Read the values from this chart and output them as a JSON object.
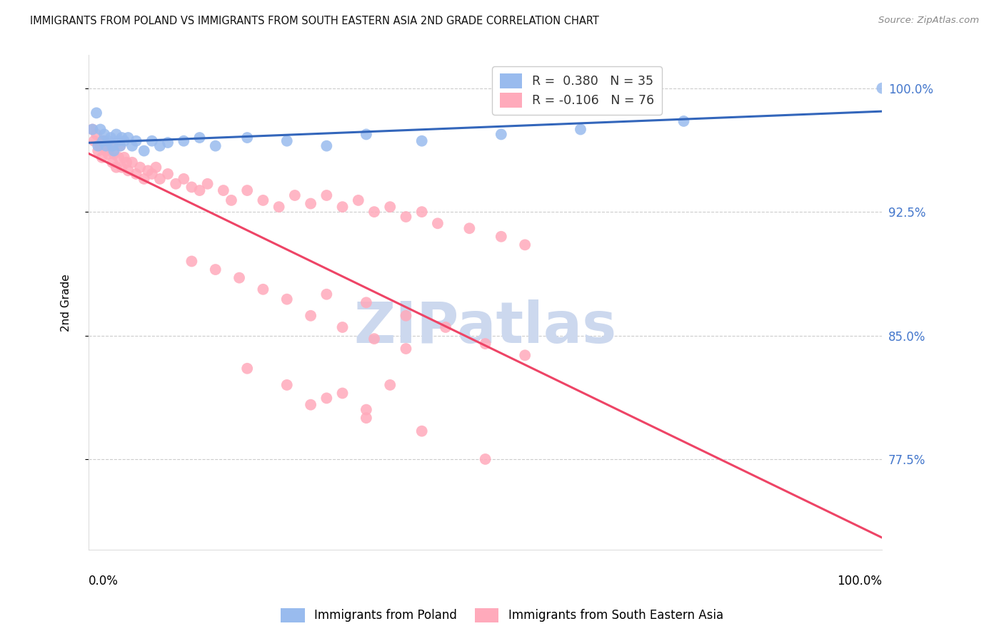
{
  "title": "IMMIGRANTS FROM POLAND VS IMMIGRANTS FROM SOUTH EASTERN ASIA 2ND GRADE CORRELATION CHART",
  "source": "Source: ZipAtlas.com",
  "ylabel": "2nd Grade",
  "ytick_labels": [
    "100.0%",
    "92.5%",
    "85.0%",
    "77.5%"
  ],
  "ytick_vals": [
    1.0,
    0.925,
    0.85,
    0.775
  ],
  "xlim": [
    0.0,
    1.0
  ],
  "ylim": [
    0.72,
    1.02
  ],
  "legend1_label": "R =  0.380   N = 35",
  "legend2_label": "R = -0.106   N = 76",
  "poland_scatter_color": "#99bbee",
  "sea_scatter_color": "#ffaabb",
  "line1_color": "#3366bb",
  "line2_color": "#ee4466",
  "watermark_text": "ZIPatlas",
  "watermark_color": "#ccd8ee",
  "poland_x": [
    0.005,
    0.01,
    0.012,
    0.015,
    0.018,
    0.02,
    0.022,
    0.025,
    0.028,
    0.03,
    0.032,
    0.035,
    0.038,
    0.04,
    0.042,
    0.045,
    0.05,
    0.055,
    0.06,
    0.07,
    0.08,
    0.09,
    0.1,
    0.12,
    0.14,
    0.16,
    0.2,
    0.25,
    0.3,
    0.35,
    0.42,
    0.52,
    0.62,
    0.75,
    1.0
  ],
  "poland_y": [
    0.975,
    0.985,
    0.965,
    0.975,
    0.968,
    0.972,
    0.965,
    0.968,
    0.97,
    0.965,
    0.962,
    0.972,
    0.968,
    0.965,
    0.97,
    0.968,
    0.97,
    0.965,
    0.968,
    0.962,
    0.968,
    0.965,
    0.967,
    0.968,
    0.97,
    0.965,
    0.97,
    0.968,
    0.965,
    0.972,
    0.968,
    0.972,
    0.975,
    0.98,
    1.0
  ],
  "sea_x": [
    0.005,
    0.007,
    0.01,
    0.012,
    0.015,
    0.017,
    0.02,
    0.022,
    0.025,
    0.027,
    0.03,
    0.032,
    0.035,
    0.038,
    0.04,
    0.042,
    0.045,
    0.048,
    0.05,
    0.055,
    0.06,
    0.065,
    0.07,
    0.075,
    0.08,
    0.085,
    0.09,
    0.1,
    0.11,
    0.12,
    0.13,
    0.14,
    0.15,
    0.17,
    0.18,
    0.2,
    0.22,
    0.24,
    0.26,
    0.28,
    0.3,
    0.32,
    0.34,
    0.36,
    0.38,
    0.4,
    0.42,
    0.44,
    0.48,
    0.52,
    0.55,
    0.13,
    0.16,
    0.19,
    0.22,
    0.25,
    0.28,
    0.32,
    0.36,
    0.4,
    0.2,
    0.25,
    0.3,
    0.35,
    0.3,
    0.35,
    0.4,
    0.45,
    0.5,
    0.55,
    0.38,
    0.32,
    0.28,
    0.35,
    0.42,
    0.5
  ],
  "sea_y": [
    0.975,
    0.968,
    0.972,
    0.962,
    0.965,
    0.958,
    0.968,
    0.962,
    0.96,
    0.965,
    0.955,
    0.96,
    0.952,
    0.958,
    0.965,
    0.952,
    0.958,
    0.955,
    0.95,
    0.955,
    0.948,
    0.952,
    0.945,
    0.95,
    0.948,
    0.952,
    0.945,
    0.948,
    0.942,
    0.945,
    0.94,
    0.938,
    0.942,
    0.938,
    0.932,
    0.938,
    0.932,
    0.928,
    0.935,
    0.93,
    0.935,
    0.928,
    0.932,
    0.925,
    0.928,
    0.922,
    0.925,
    0.918,
    0.915,
    0.91,
    0.905,
    0.895,
    0.89,
    0.885,
    0.878,
    0.872,
    0.862,
    0.855,
    0.848,
    0.842,
    0.83,
    0.82,
    0.812,
    0.805,
    0.875,
    0.87,
    0.862,
    0.855,
    0.845,
    0.838,
    0.82,
    0.815,
    0.808,
    0.8,
    0.792,
    0.775
  ]
}
